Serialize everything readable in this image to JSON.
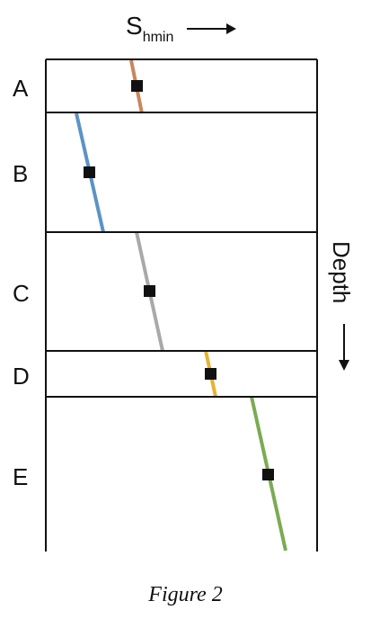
{
  "x_axis": {
    "label": "S",
    "subscript": "hmin"
  },
  "y_axis": {
    "label": "Depth"
  },
  "caption": "Figure 2",
  "layers": [
    {
      "name": "A",
      "color": "#c8875a"
    },
    {
      "name": "B",
      "color": "#5b93c6"
    },
    {
      "name": "C",
      "color": "#a9a9a9"
    },
    {
      "name": "D",
      "color": "#e6b233"
    },
    {
      "name": "E",
      "color": "#7aab52"
    }
  ]
}
